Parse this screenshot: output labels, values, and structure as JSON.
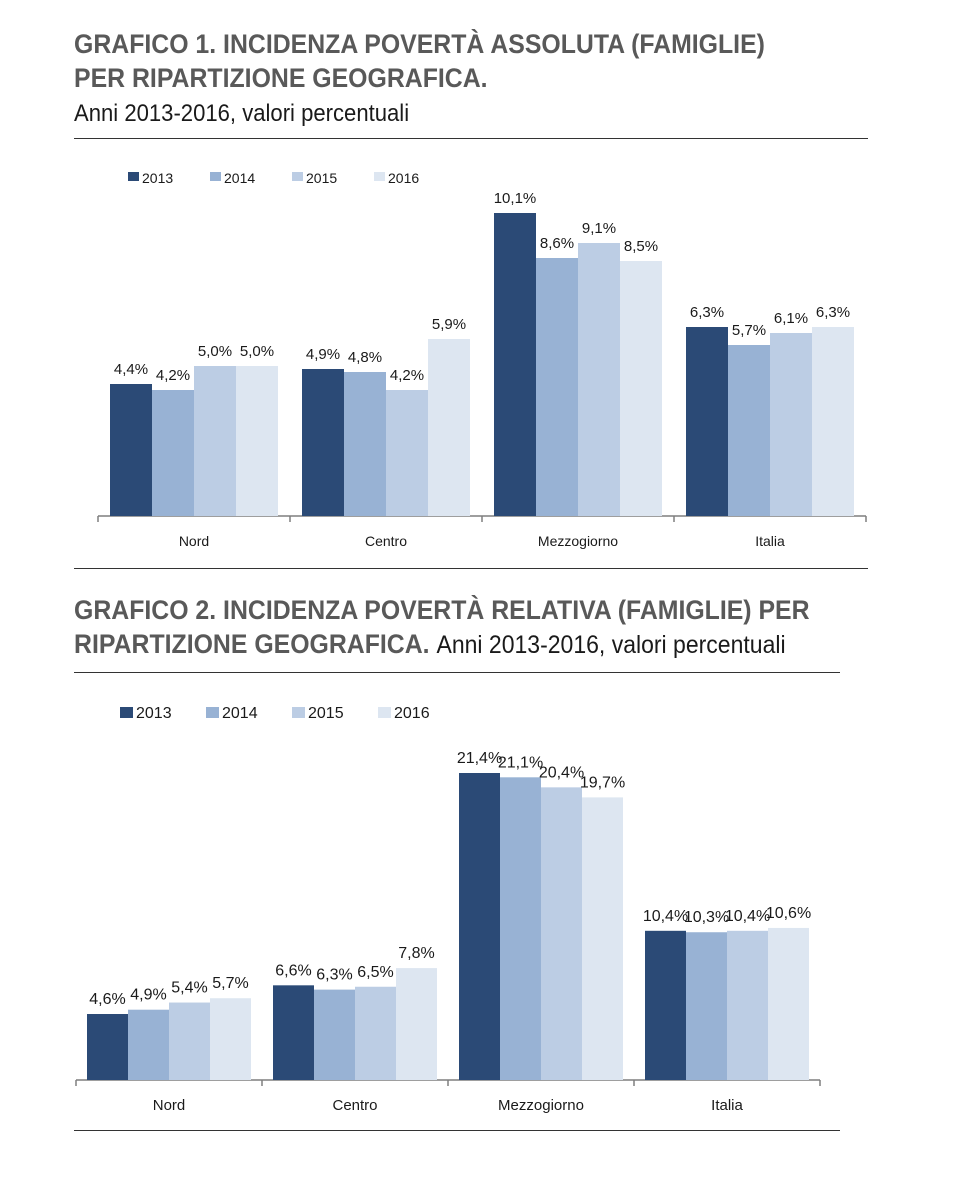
{
  "chart_data": [
    {
      "type": "bar",
      "title": "GRAFICO 1. INCIDENZA POVERTÀ ASSOLUTA (FAMIGLIE) PER RIPARTIZIONE GEOGRAFICA.",
      "title_line1": "GRAFICO 1. INCIDENZA POVERTÀ ASSOLUTA (FAMIGLIE)",
      "title_line2": "PER RIPARTIZIONE GEOGRAFICA.",
      "subtitle": "Anni 2013-2016, valori percentuali",
      "categories": [
        "Nord",
        "Centro",
        "Mezzogiorno",
        "Italia"
      ],
      "series": [
        {
          "name": "2013",
          "values": [
            4.4,
            4.9,
            10.1,
            6.3
          ],
          "labels": [
            "4,4%",
            "4,9%",
            "10,1%",
            "6,3%"
          ]
        },
        {
          "name": "2014",
          "values": [
            4.2,
            4.8,
            8.6,
            5.7
          ],
          "labels": [
            "4,2%",
            "4,8%",
            "8,6%",
            "5,7%"
          ]
        },
        {
          "name": "2015",
          "values": [
            5.0,
            4.2,
            9.1,
            6.1
          ],
          "labels": [
            "5,0%",
            "4,2%",
            "9,1%",
            "6,1%"
          ]
        },
        {
          "name": "2016",
          "values": [
            5.0,
            5.9,
            8.5,
            6.3
          ],
          "labels": [
            "5,0%",
            "5,9%",
            "8,5%",
            "6,3%"
          ]
        }
      ],
      "ylim": [
        0,
        11
      ],
      "legend": "top-left",
      "grid": false
    },
    {
      "type": "bar",
      "title": "GRAFICO 2. INCIDENZA POVERTÀ RELATIVA (FAMIGLIE) PER RIPARTIZIONE GEOGRAFICA.",
      "title_line1": "GRAFICO 2. INCIDENZA POVERTÀ RELATIVA (FAMIGLIE) PER",
      "title_line2": "RIPARTIZIONE GEOGRAFICA.",
      "subtitle": "Anni 2013-2016, valori percentuali",
      "categories": [
        "Nord",
        "Centro",
        "Mezzogiorno",
        "Italia"
      ],
      "series": [
        {
          "name": "2013",
          "values": [
            4.6,
            6.6,
            21.4,
            10.4
          ],
          "labels": [
            "4,6%",
            "6,6%",
            "21,4%",
            "10,4%"
          ]
        },
        {
          "name": "2014",
          "values": [
            4.9,
            6.3,
            21.1,
            10.3
          ],
          "labels": [
            "4,9%",
            "6,3%",
            "21,1%",
            "10,3%"
          ]
        },
        {
          "name": "2015",
          "values": [
            5.4,
            6.5,
            20.4,
            10.4
          ],
          "labels": [
            "5,4%",
            "6,5%",
            "20,4%",
            "10,4%"
          ]
        },
        {
          "name": "2016",
          "values": [
            5.7,
            7.8,
            19.7,
            10.6
          ],
          "labels": [
            "5,7%",
            "7,8%",
            "19,7%",
            "10,6%"
          ]
        }
      ],
      "ylim": [
        0,
        23
      ],
      "legend": "top-left",
      "grid": false
    }
  ],
  "colors": {
    "2013": "#2b4a76",
    "2014": "#98b2d4",
    "2015": "#bccde4",
    "2016": "#dde6f1"
  }
}
